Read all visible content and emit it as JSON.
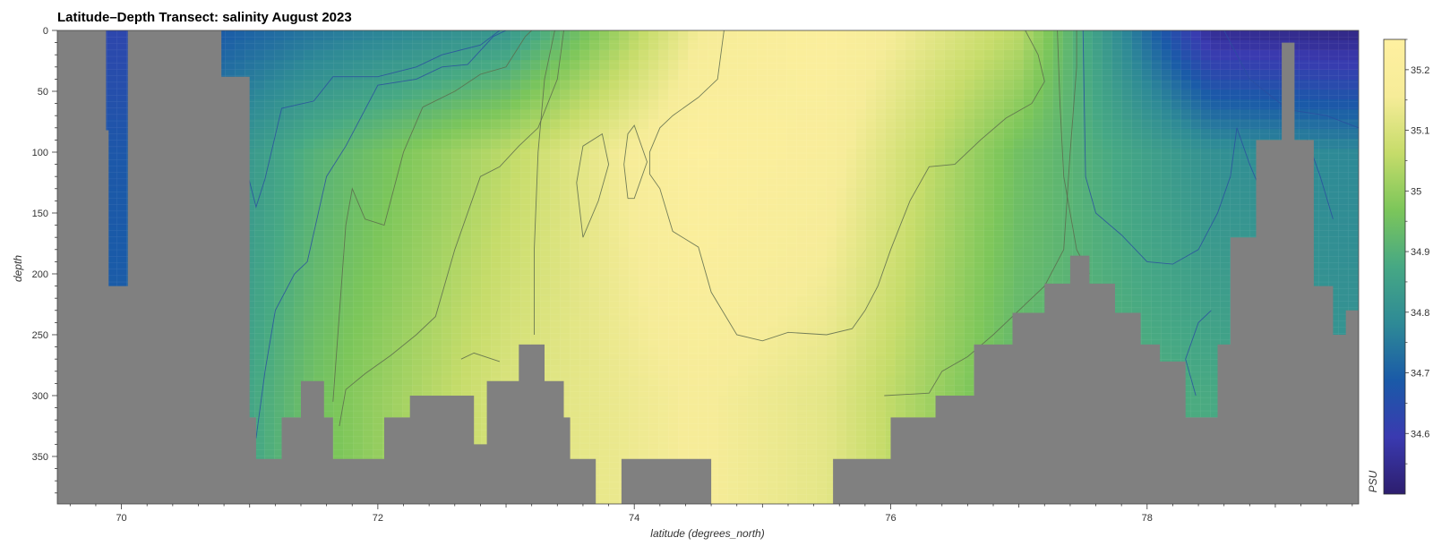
{
  "chart_data": {
    "type": "heatmap",
    "title": "Latitude–Depth Transect: salinity August 2023",
    "xlabel": "latitude (degrees_north)",
    "ylabel": "depth",
    "colorbar_label": "PSU",
    "xlim": [
      69.5,
      79.65
    ],
    "ylim": [
      0,
      389
    ],
    "x_ticks": [
      70,
      72,
      74,
      76,
      78
    ],
    "y_ticks": [
      0,
      50,
      100,
      150,
      200,
      250,
      300,
      350
    ],
    "colorbar_range": [
      34.5,
      35.25
    ],
    "colorbar_ticks": [
      34.6,
      34.7,
      34.8,
      34.9,
      35,
      35.1,
      35.2
    ],
    "colorscale": [
      "#2d1e6e",
      "#3a3ab0",
      "#1a5aa8",
      "#2e8a96",
      "#46a884",
      "#7cc65a",
      "#c6dc6a",
      "#f6ec98",
      "#fff0a0"
    ],
    "masked_color": "#808080",
    "bottom_depth_m": [
      [
        69.55,
        0
      ],
      [
        69.85,
        82
      ],
      [
        69.9,
        210
      ],
      [
        70.05,
        0
      ],
      [
        70.78,
        38
      ],
      [
        71.0,
        318
      ],
      [
        71.05,
        352
      ],
      [
        71.25,
        318
      ],
      [
        71.4,
        288
      ],
      [
        71.58,
        318
      ],
      [
        71.65,
        352
      ],
      [
        72.05,
        318
      ],
      [
        72.25,
        300
      ],
      [
        72.4,
        300
      ],
      [
        72.75,
        340
      ],
      [
        72.85,
        288
      ],
      [
        73.1,
        258
      ],
      [
        73.3,
        288
      ],
      [
        73.45,
        318
      ],
      [
        73.5,
        352
      ],
      [
        73.7,
        390
      ],
      [
        73.9,
        352
      ],
      [
        74.5,
        352
      ],
      [
        74.6,
        390
      ],
      [
        75.55,
        352
      ],
      [
        75.8,
        352
      ],
      [
        76.0,
        318
      ],
      [
        76.35,
        300
      ],
      [
        76.65,
        258
      ],
      [
        76.95,
        232
      ],
      [
        77.2,
        208
      ],
      [
        77.4,
        185
      ],
      [
        77.55,
        208
      ],
      [
        77.75,
        232
      ],
      [
        77.95,
        258
      ],
      [
        78.1,
        272
      ],
      [
        78.3,
        318
      ],
      [
        78.55,
        258
      ],
      [
        78.65,
        170
      ],
      [
        78.85,
        90
      ],
      [
        79.05,
        10
      ],
      [
        79.15,
        90
      ],
      [
        79.3,
        210
      ],
      [
        79.45,
        250
      ],
      [
        79.55,
        230
      ],
      [
        79.65,
        190
      ]
    ],
    "sample_profiles": [
      {
        "lat": 70.0,
        "surface": 34.63,
        "mid": 34.68,
        "deep": 34.7
      },
      {
        "lat": 71.5,
        "surface": 34.74,
        "mid": 34.9,
        "deep": 34.95
      },
      {
        "lat": 73.0,
        "surface": 34.82,
        "mid": 35.05,
        "deep": 35.1
      },
      {
        "lat": 74.5,
        "surface": 35.15,
        "mid": 35.22,
        "deep": 35.16
      },
      {
        "lat": 75.5,
        "surface": 35.21,
        "mid": 35.18,
        "deep": 35.12
      },
      {
        "lat": 77.0,
        "surface": 35.05,
        "mid": 34.95,
        "deep": 34.92
      },
      {
        "lat": 78.5,
        "surface": 34.55,
        "mid": 34.8,
        "deep": 34.88
      },
      {
        "lat": 79.5,
        "surface": 34.53,
        "mid": 34.78,
        "deep": 34.82
      }
    ],
    "contours": [
      [
        [
          70.82,
          172
        ],
        [
          70.9,
          107
        ],
        [
          70.97,
          112
        ],
        [
          71.05,
          145
        ],
        [
          71.12,
          122
        ],
        [
          71.25,
          64
        ],
        [
          71.5,
          58
        ],
        [
          71.65,
          38
        ],
        [
          72.0,
          38
        ],
        [
          72.3,
          30
        ],
        [
          72.5,
          20
        ],
        [
          72.8,
          12
        ],
        [
          72.95,
          0
        ]
      ],
      [
        [
          71.05,
          335
        ],
        [
          71.12,
          280
        ],
        [
          71.2,
          230
        ],
        [
          71.35,
          200
        ],
        [
          71.45,
          190
        ],
        [
          71.6,
          120
        ],
        [
          71.75,
          95
        ],
        [
          72.0,
          45
        ],
        [
          72.3,
          40
        ],
        [
          72.5,
          30
        ],
        [
          72.7,
          28
        ],
        [
          72.9,
          5
        ],
        [
          73.0,
          0
        ]
      ],
      [
        [
          71.65,
          305
        ],
        [
          71.75,
          160
        ],
        [
          71.8,
          130
        ],
        [
          71.9,
          155
        ],
        [
          72.05,
          160
        ],
        [
          72.2,
          100
        ],
        [
          72.35,
          63
        ],
        [
          72.6,
          50
        ],
        [
          72.8,
          36
        ],
        [
          73.0,
          30
        ],
        [
          73.15,
          5
        ],
        [
          73.2,
          0
        ]
      ],
      [
        [
          71.7,
          325
        ],
        [
          71.75,
          295
        ],
        [
          71.9,
          282
        ],
        [
          72.1,
          267
        ],
        [
          72.3,
          250
        ],
        [
          72.45,
          235
        ],
        [
          72.6,
          180
        ],
        [
          72.8,
          120
        ],
        [
          72.95,
          112
        ],
        [
          73.1,
          95
        ],
        [
          73.25,
          80
        ],
        [
          73.4,
          40
        ],
        [
          73.45,
          0
        ]
      ],
      [
        [
          72.65,
          270
        ],
        [
          72.75,
          265
        ],
        [
          72.95,
          272
        ]
      ],
      [
        [
          73.22,
          250
        ],
        [
          73.22,
          180
        ],
        [
          73.25,
          100
        ],
        [
          73.3,
          40
        ],
        [
          73.38,
          0
        ]
      ],
      [
        [
          73.6,
          170
        ],
        [
          73.55,
          125
        ],
        [
          73.6,
          95
        ],
        [
          73.75,
          85
        ],
        [
          73.8,
          110
        ],
        [
          73.72,
          140
        ],
        [
          73.6,
          170
        ]
      ],
      [
        [
          73.95,
          138
        ],
        [
          73.92,
          110
        ],
        [
          73.95,
          85
        ],
        [
          74.0,
          78
        ],
        [
          74.1,
          108
        ],
        [
          74.0,
          138
        ],
        [
          73.95,
          138
        ]
      ],
      [
        [
          74.7,
          0
        ],
        [
          74.65,
          40
        ],
        [
          74.5,
          55
        ],
        [
          74.3,
          70
        ],
        [
          74.2,
          80
        ],
        [
          74.12,
          100
        ],
        [
          74.12,
          118
        ],
        [
          74.2,
          130
        ],
        [
          74.3,
          165
        ],
        [
          74.5,
          178
        ],
        [
          74.6,
          215
        ],
        [
          74.8,
          250
        ],
        [
          75.0,
          255
        ],
        [
          75.2,
          248
        ],
        [
          75.5,
          250
        ],
        [
          75.7,
          245
        ],
        [
          75.8,
          230
        ],
        [
          75.9,
          210
        ],
        [
          76.0,
          180
        ],
        [
          76.15,
          140
        ],
        [
          76.3,
          112
        ],
        [
          76.5,
          110
        ],
        [
          76.7,
          90
        ],
        [
          76.9,
          72
        ],
        [
          77.1,
          60
        ],
        [
          77.2,
          42
        ],
        [
          77.15,
          20
        ],
        [
          77.05,
          0
        ]
      ],
      [
        [
          75.95,
          300
        ],
        [
          76.3,
          298
        ],
        [
          76.4,
          280
        ],
        [
          76.6,
          268
        ],
        [
          76.8,
          250
        ],
        [
          77.0,
          230
        ],
        [
          77.2,
          210
        ],
        [
          77.35,
          180
        ],
        [
          77.4,
          100
        ],
        [
          77.45,
          30
        ],
        [
          77.45,
          0
        ]
      ],
      [
        [
          77.55,
          200
        ],
        [
          77.45,
          180
        ],
        [
          77.35,
          120
        ],
        [
          77.32,
          60
        ],
        [
          77.3,
          0
        ]
      ],
      [
        [
          77.5,
          0
        ],
        [
          77.52,
          120
        ],
        [
          77.6,
          150
        ],
        [
          77.8,
          168
        ],
        [
          78.0,
          190
        ],
        [
          78.2,
          192
        ],
        [
          78.4,
          180
        ],
        [
          78.55,
          150
        ],
        [
          78.65,
          120
        ],
        [
          78.7,
          80
        ],
        [
          78.8,
          110
        ],
        [
          78.9,
          135
        ]
      ],
      [
        [
          78.38,
          300
        ],
        [
          78.3,
          270
        ],
        [
          78.4,
          240
        ],
        [
          78.5,
          230
        ]
      ],
      [
        [
          79.2,
          140
        ],
        [
          79.15,
          100
        ],
        [
          79.25,
          90
        ],
        [
          79.35,
          120
        ],
        [
          79.45,
          155
        ]
      ],
      [
        [
          78.6,
          0
        ],
        [
          78.8,
          40
        ],
        [
          79.1,
          65
        ],
        [
          79.4,
          70
        ],
        [
          79.65,
          80
        ]
      ]
    ]
  }
}
